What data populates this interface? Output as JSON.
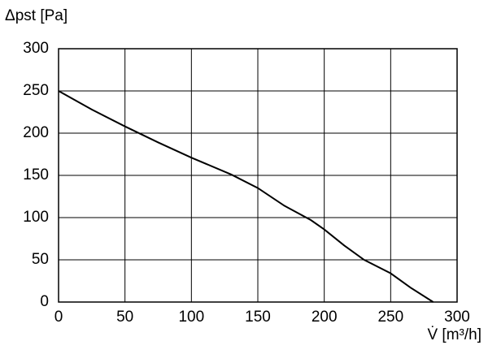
{
  "chart_data": {
    "type": "line",
    "x_label": "V̇ [m³/h]",
    "y_label": "Δpst [Pa]",
    "x": [
      0,
      25,
      50,
      75,
      100,
      130,
      150,
      170,
      190,
      200,
      215,
      230,
      250,
      265,
      282
    ],
    "series": [
      {
        "color": "#000000",
        "values": [
          250,
          228,
          208,
          189,
          171,
          151,
          135,
          114,
          97,
          86,
          67,
          50,
          34,
          17,
          0
        ]
      }
    ],
    "xlim": [
      0,
      300
    ],
    "xticks": [
      0,
      50,
      100,
      150,
      200,
      250,
      300
    ],
    "ylim": [
      0,
      300
    ],
    "yticks": [
      0,
      50,
      100,
      150,
      200,
      250,
      300
    ],
    "grid": true
  }
}
